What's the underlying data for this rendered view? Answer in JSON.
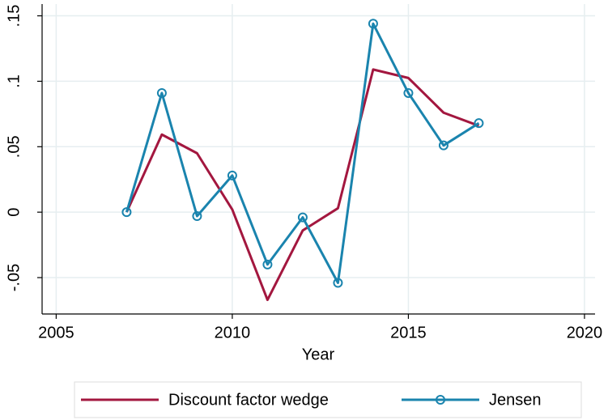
{
  "chart_data": {
    "type": "line",
    "x_label": "Year",
    "x": [
      2007,
      2008,
      2009,
      2010,
      2011,
      2012,
      2013,
      2014,
      2015,
      2016,
      2017
    ],
    "series": [
      {
        "name": "Discount factor wedge",
        "color": "#a3173f",
        "marker": false,
        "values": [
          0,
          0.0593,
          0.045,
          0.002,
          -0.067,
          -0.014,
          0.003,
          0.109,
          0.1025,
          0.076,
          0.066
        ]
      },
      {
        "name": "Jensen",
        "color": "#1a84ae",
        "marker": true,
        "values": [
          0,
          0.091,
          -0.003,
          0.028,
          -0.04,
          -0.004,
          -0.054,
          0.144,
          0.091,
          0.051,
          0.068
        ]
      }
    ],
    "xlim": [
      2004.6,
      2020.3
    ],
    "xticks": [
      2005,
      2010,
      2015,
      2020
    ],
    "ylim": [
      -0.0778,
      0.159
    ],
    "yticks": [
      {
        "value": -0.05,
        "label": "-.05"
      },
      0,
      {
        "value": 0.05,
        "label": ".05"
      },
      {
        "value": 0.1,
        "label": ".1"
      },
      {
        "value": 0.15,
        "label": ".15"
      }
    ],
    "grid": true,
    "legend": "bottom"
  }
}
